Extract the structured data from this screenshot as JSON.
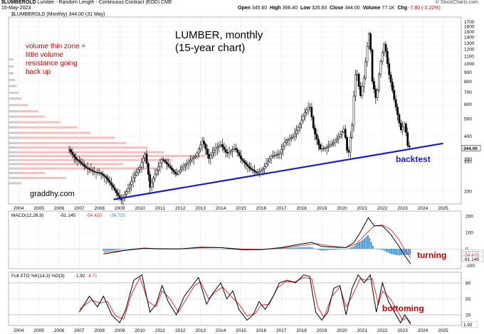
{
  "header": {
    "symbol": "$LUMBEROLD",
    "description": "Lumber - Random Length - Continuous Contract (EOD) CME",
    "date": "15-May-2023",
    "source": "© StockCharts.com",
    "price_line": "$LUMBEROLD (Monthly) 344.00 (31 May)",
    "open_label": "Open",
    "open": "345.60",
    "high_label": "High",
    "high": "366.40",
    "low_label": "Low",
    "low": "326.60",
    "close_label": "Close",
    "close": "344.00",
    "volume_label": "Volume",
    "volume": "77.1K",
    "chg_label": "Chg",
    "chg": "-7.80 (-2.22%)"
  },
  "annotations": {
    "title_line1": "LUMBER, monthly",
    "title_line2": "(15-year chart)",
    "volume_note": [
      "volume thin zone =",
      "little volume",
      "resistance going",
      "back up"
    ],
    "backtest": "backtest",
    "watermark": "graddhy.com",
    "turning": "turning",
    "bottoming": "bottoming"
  },
  "colors": {
    "candle": "#000000",
    "trendline": "#1a1acc",
    "note_red": "#cc0000",
    "note_blue": "#1a1acc",
    "volume_bars": "#f2b8b8",
    "volume_bars_grey": "#cccccc",
    "macd_line": "#000000",
    "signal_line": "#e03030",
    "histogram": "#3a8fd0",
    "sto_k": "#000000",
    "sto_d": "#e03030"
  },
  "chart_data": [
    {
      "type": "candlestick",
      "title": "$LUMBEROLD (Monthly) 344.00 (31 May)",
      "scale": "log",
      "ylim": [
        170,
        1800
      ],
      "y_ticks": [
        200,
        300,
        400,
        500,
        600,
        700,
        800,
        900,
        1000,
        1100,
        1200,
        1300,
        1400,
        1500,
        1600,
        1700
      ],
      "x_ticks": [
        "2004",
        "2005",
        "2006",
        "2007",
        "2008",
        "2009",
        "2010",
        "2011",
        "2012",
        "2013",
        "2014",
        "2015",
        "2016",
        "2017",
        "2018",
        "2019",
        "2020",
        "2021",
        "2022",
        "2023",
        "2024",
        "2025"
      ],
      "last_value_label": "344.00",
      "last_value_label_2": "300",
      "series": [
        {
          "name": "price",
          "points": [
            [
              2006.5,
              338
            ],
            [
              2006.8,
              300
            ],
            [
              2007.0,
              290
            ],
            [
              2007.3,
              270
            ],
            [
              2007.7,
              255
            ],
            [
              2008.0,
              252
            ],
            [
              2008.3,
              238
            ],
            [
              2008.6,
              215
            ],
            [
              2008.9,
              190
            ],
            [
              2009.1,
              178
            ],
            [
              2009.4,
              205
            ],
            [
              2009.7,
              240
            ],
            [
              2010.0,
              270
            ],
            [
              2010.25,
              320
            ],
            [
              2010.5,
              210
            ],
            [
              2010.8,
              255
            ],
            [
              2011.1,
              300
            ],
            [
              2011.5,
              268
            ],
            [
              2011.8,
              245
            ],
            [
              2012.1,
              270
            ],
            [
              2012.4,
              290
            ],
            [
              2012.8,
              315
            ],
            [
              2013.1,
              380
            ],
            [
              2013.4,
              300
            ],
            [
              2013.7,
              340
            ],
            [
              2014.0,
              360
            ],
            [
              2014.3,
              320
            ],
            [
              2014.7,
              345
            ],
            [
              2015.0,
              300
            ],
            [
              2015.4,
              268
            ],
            [
              2015.8,
              250
            ],
            [
              2016.1,
              265
            ],
            [
              2016.5,
              310
            ],
            [
              2016.9,
              320
            ],
            [
              2017.2,
              375
            ],
            [
              2017.6,
              400
            ],
            [
              2017.9,
              460
            ],
            [
              2018.2,
              550
            ],
            [
              2018.4,
              590
            ],
            [
              2018.6,
              430
            ],
            [
              2018.9,
              340
            ],
            [
              2019.2,
              345
            ],
            [
              2019.6,
              370
            ],
            [
              2019.9,
              405
            ],
            [
              2020.1,
              440
            ],
            [
              2020.3,
              300
            ],
            [
              2020.5,
              460
            ],
            [
              2020.7,
              950
            ],
            [
              2020.9,
              650
            ],
            [
              2021.1,
              850
            ],
            [
              2021.35,
              1500
            ],
            [
              2021.5,
              800
            ],
            [
              2021.7,
              620
            ],
            [
              2021.9,
              1000
            ],
            [
              2022.1,
              1300
            ],
            [
              2022.3,
              900
            ],
            [
              2022.6,
              620
            ],
            [
              2022.9,
              430
            ],
            [
              2023.1,
              470
            ],
            [
              2023.25,
              355
            ],
            [
              2023.4,
              344
            ]
          ]
        }
      ],
      "trendline": {
        "from": [
          2008.7,
          180
        ],
        "to": [
          2025.0,
          365
        ]
      },
      "volume_by_price": [
        {
          "price": 220,
          "size": 8
        },
        {
          "price": 235,
          "size": 35
        },
        {
          "price": 250,
          "size": 22
        },
        {
          "price": 265,
          "size": 92
        },
        {
          "price": 280,
          "size": 70
        },
        {
          "price": 295,
          "size": 100
        },
        {
          "price": 310,
          "size": 120
        },
        {
          "price": 325,
          "size": 95
        },
        {
          "price": 345,
          "size": 85
        },
        {
          "price": 365,
          "size": 72
        },
        {
          "price": 390,
          "size": 65
        },
        {
          "price": 415,
          "size": 50
        },
        {
          "price": 445,
          "size": 42
        },
        {
          "price": 475,
          "size": 32
        },
        {
          "price": 510,
          "size": 22
        },
        {
          "price": 545,
          "size": 18
        },
        {
          "price": 590,
          "size": 12
        },
        {
          "price": 640,
          "size": 8
        },
        {
          "price": 690,
          "size": 6
        },
        {
          "price": 750,
          "size": 5
        },
        {
          "price": 810,
          "size": 4
        },
        {
          "price": 880,
          "size": 3
        },
        {
          "price": 960,
          "size": 3
        },
        {
          "price": 1050,
          "size": 3
        }
      ]
    },
    {
      "type": "line",
      "title": "MACD(12,26,9) -91.145, -54.420, -36.725",
      "legend": [
        "MACD(12,26,9)",
        "-91.145",
        "-54.420",
        "-36.725"
      ],
      "ylim": [
        -120,
        230
      ],
      "y_ticks": [
        -100,
        0,
        100,
        200
      ],
      "last_value_labels": [
        "-36.725",
        "-54.420",
        "-91.145"
      ],
      "series": [
        {
          "name": "MACD",
          "points": [
            [
              2008.2,
              -30
            ],
            [
              2008.7,
              -22
            ],
            [
              2009.2,
              -10
            ],
            [
              2010.2,
              5
            ],
            [
              2011.0,
              0
            ],
            [
              2012.0,
              0
            ],
            [
              2013.0,
              10
            ],
            [
              2014.0,
              8
            ],
            [
              2015.0,
              -5
            ],
            [
              2016.0,
              -5
            ],
            [
              2017.0,
              8
            ],
            [
              2018.0,
              30
            ],
            [
              2018.5,
              40
            ],
            [
              2019.0,
              15
            ],
            [
              2019.6,
              10
            ],
            [
              2020.2,
              8
            ],
            [
              2020.6,
              40
            ],
            [
              2021.0,
              120
            ],
            [
              2021.3,
              190
            ],
            [
              2021.6,
              140
            ],
            [
              2022.0,
              140
            ],
            [
              2022.4,
              90
            ],
            [
              2022.8,
              20
            ],
            [
              2023.1,
              -40
            ],
            [
              2023.4,
              -91
            ]
          ]
        },
        {
          "name": "Signal",
          "points": [
            [
              2008.2,
              -18
            ],
            [
              2009.2,
              -10
            ],
            [
              2010.2,
              2
            ],
            [
              2011.0,
              2
            ],
            [
              2012.0,
              0
            ],
            [
              2013.0,
              7
            ],
            [
              2014.0,
              8
            ],
            [
              2015.0,
              0
            ],
            [
              2016.0,
              -4
            ],
            [
              2017.0,
              4
            ],
            [
              2018.0,
              20
            ],
            [
              2018.7,
              32
            ],
            [
              2019.4,
              18
            ],
            [
              2020.2,
              8
            ],
            [
              2020.7,
              30
            ],
            [
              2021.1,
              80
            ],
            [
              2021.6,
              140
            ],
            [
              2022.0,
              145
            ],
            [
              2022.4,
              120
            ],
            [
              2022.8,
              60
            ],
            [
              2023.1,
              -5
            ],
            [
              2023.4,
              -54
            ]
          ]
        }
      ]
    },
    {
      "type": "line",
      "title": "Full STO %K(14,3) %D(3) 1.92, 4.71",
      "legend": [
        "Full STO %K(14,3) %D(3)",
        "1.92",
        "4.71"
      ],
      "ylim": [
        0,
        100
      ],
      "y_ticks": [
        20,
        50,
        80
      ],
      "last_value_labels": [
        "1.92"
      ],
      "x_ticks": [
        "2004",
        "2005",
        "2006",
        "2007",
        "2008",
        "2009",
        "2010",
        "2011",
        "2012",
        "2013",
        "2014",
        "2015",
        "2016",
        "2017",
        "2018",
        "2019",
        "2020",
        "2021",
        "2022",
        "2023",
        "2024",
        "2025"
      ],
      "series": [
        {
          "name": "%K",
          "points": [
            [
              2007.0,
              25
            ],
            [
              2007.5,
              55
            ],
            [
              2007.9,
              35
            ],
            [
              2008.2,
              55
            ],
            [
              2008.6,
              20
            ],
            [
              2009.0,
              5
            ],
            [
              2009.3,
              30
            ],
            [
              2009.7,
              85
            ],
            [
              2010.1,
              95
            ],
            [
              2010.5,
              25
            ],
            [
              2010.8,
              40
            ],
            [
              2011.1,
              75
            ],
            [
              2011.4,
              45
            ],
            [
              2011.8,
              20
            ],
            [
              2012.2,
              55
            ],
            [
              2012.5,
              70
            ],
            [
              2012.9,
              90
            ],
            [
              2013.3,
              40
            ],
            [
              2013.6,
              60
            ],
            [
              2014.0,
              80
            ],
            [
              2014.3,
              50
            ],
            [
              2014.6,
              65
            ],
            [
              2014.9,
              30
            ],
            [
              2015.3,
              10
            ],
            [
              2015.6,
              20
            ],
            [
              2015.9,
              45
            ],
            [
              2016.2,
              30
            ],
            [
              2016.6,
              55
            ],
            [
              2016.9,
              80
            ],
            [
              2017.3,
              85
            ],
            [
              2017.7,
              80
            ],
            [
              2018.1,
              95
            ],
            [
              2018.4,
              92
            ],
            [
              2018.7,
              25
            ],
            [
              2019.0,
              10
            ],
            [
              2019.3,
              25
            ],
            [
              2019.6,
              70
            ],
            [
              2019.9,
              75
            ],
            [
              2020.2,
              20
            ],
            [
              2020.5,
              70
            ],
            [
              2020.8,
              95
            ],
            [
              2021.1,
              80
            ],
            [
              2021.4,
              95
            ],
            [
              2021.7,
              25
            ],
            [
              2022.0,
              80
            ],
            [
              2022.3,
              45
            ],
            [
              2022.6,
              25
            ],
            [
              2022.9,
              5
            ],
            [
              2023.1,
              20
            ],
            [
              2023.4,
              2
            ]
          ]
        },
        {
          "name": "%D",
          "points": [
            [
              2007.0,
              30
            ],
            [
              2007.6,
              48
            ],
            [
              2008.0,
              42
            ],
            [
              2008.4,
              45
            ],
            [
              2008.8,
              18
            ],
            [
              2009.2,
              12
            ],
            [
              2009.6,
              60
            ],
            [
              2010.0,
              90
            ],
            [
              2010.4,
              45
            ],
            [
              2010.8,
              35
            ],
            [
              2011.1,
              65
            ],
            [
              2011.5,
              50
            ],
            [
              2011.9,
              25
            ],
            [
              2012.3,
              50
            ],
            [
              2012.7,
              75
            ],
            [
              2013.0,
              82
            ],
            [
              2013.4,
              50
            ],
            [
              2013.8,
              65
            ],
            [
              2014.1,
              72
            ],
            [
              2014.5,
              55
            ],
            [
              2014.9,
              40
            ],
            [
              2015.3,
              18
            ],
            [
              2015.7,
              22
            ],
            [
              2016.0,
              38
            ],
            [
              2016.4,
              40
            ],
            [
              2016.8,
              70
            ],
            [
              2017.2,
              82
            ],
            [
              2017.7,
              82
            ],
            [
              2018.1,
              90
            ],
            [
              2018.5,
              88
            ],
            [
              2018.8,
              35
            ],
            [
              2019.1,
              15
            ],
            [
              2019.5,
              55
            ],
            [
              2019.9,
              72
            ],
            [
              2020.2,
              35
            ],
            [
              2020.5,
              55
            ],
            [
              2020.9,
              88
            ],
            [
              2021.2,
              85
            ],
            [
              2021.5,
              88
            ],
            [
              2021.8,
              40
            ],
            [
              2022.0,
              65
            ],
            [
              2022.4,
              50
            ],
            [
              2022.7,
              30
            ],
            [
              2023.0,
              10
            ],
            [
              2023.2,
              15
            ],
            [
              2023.4,
              5
            ]
          ]
        }
      ]
    }
  ]
}
